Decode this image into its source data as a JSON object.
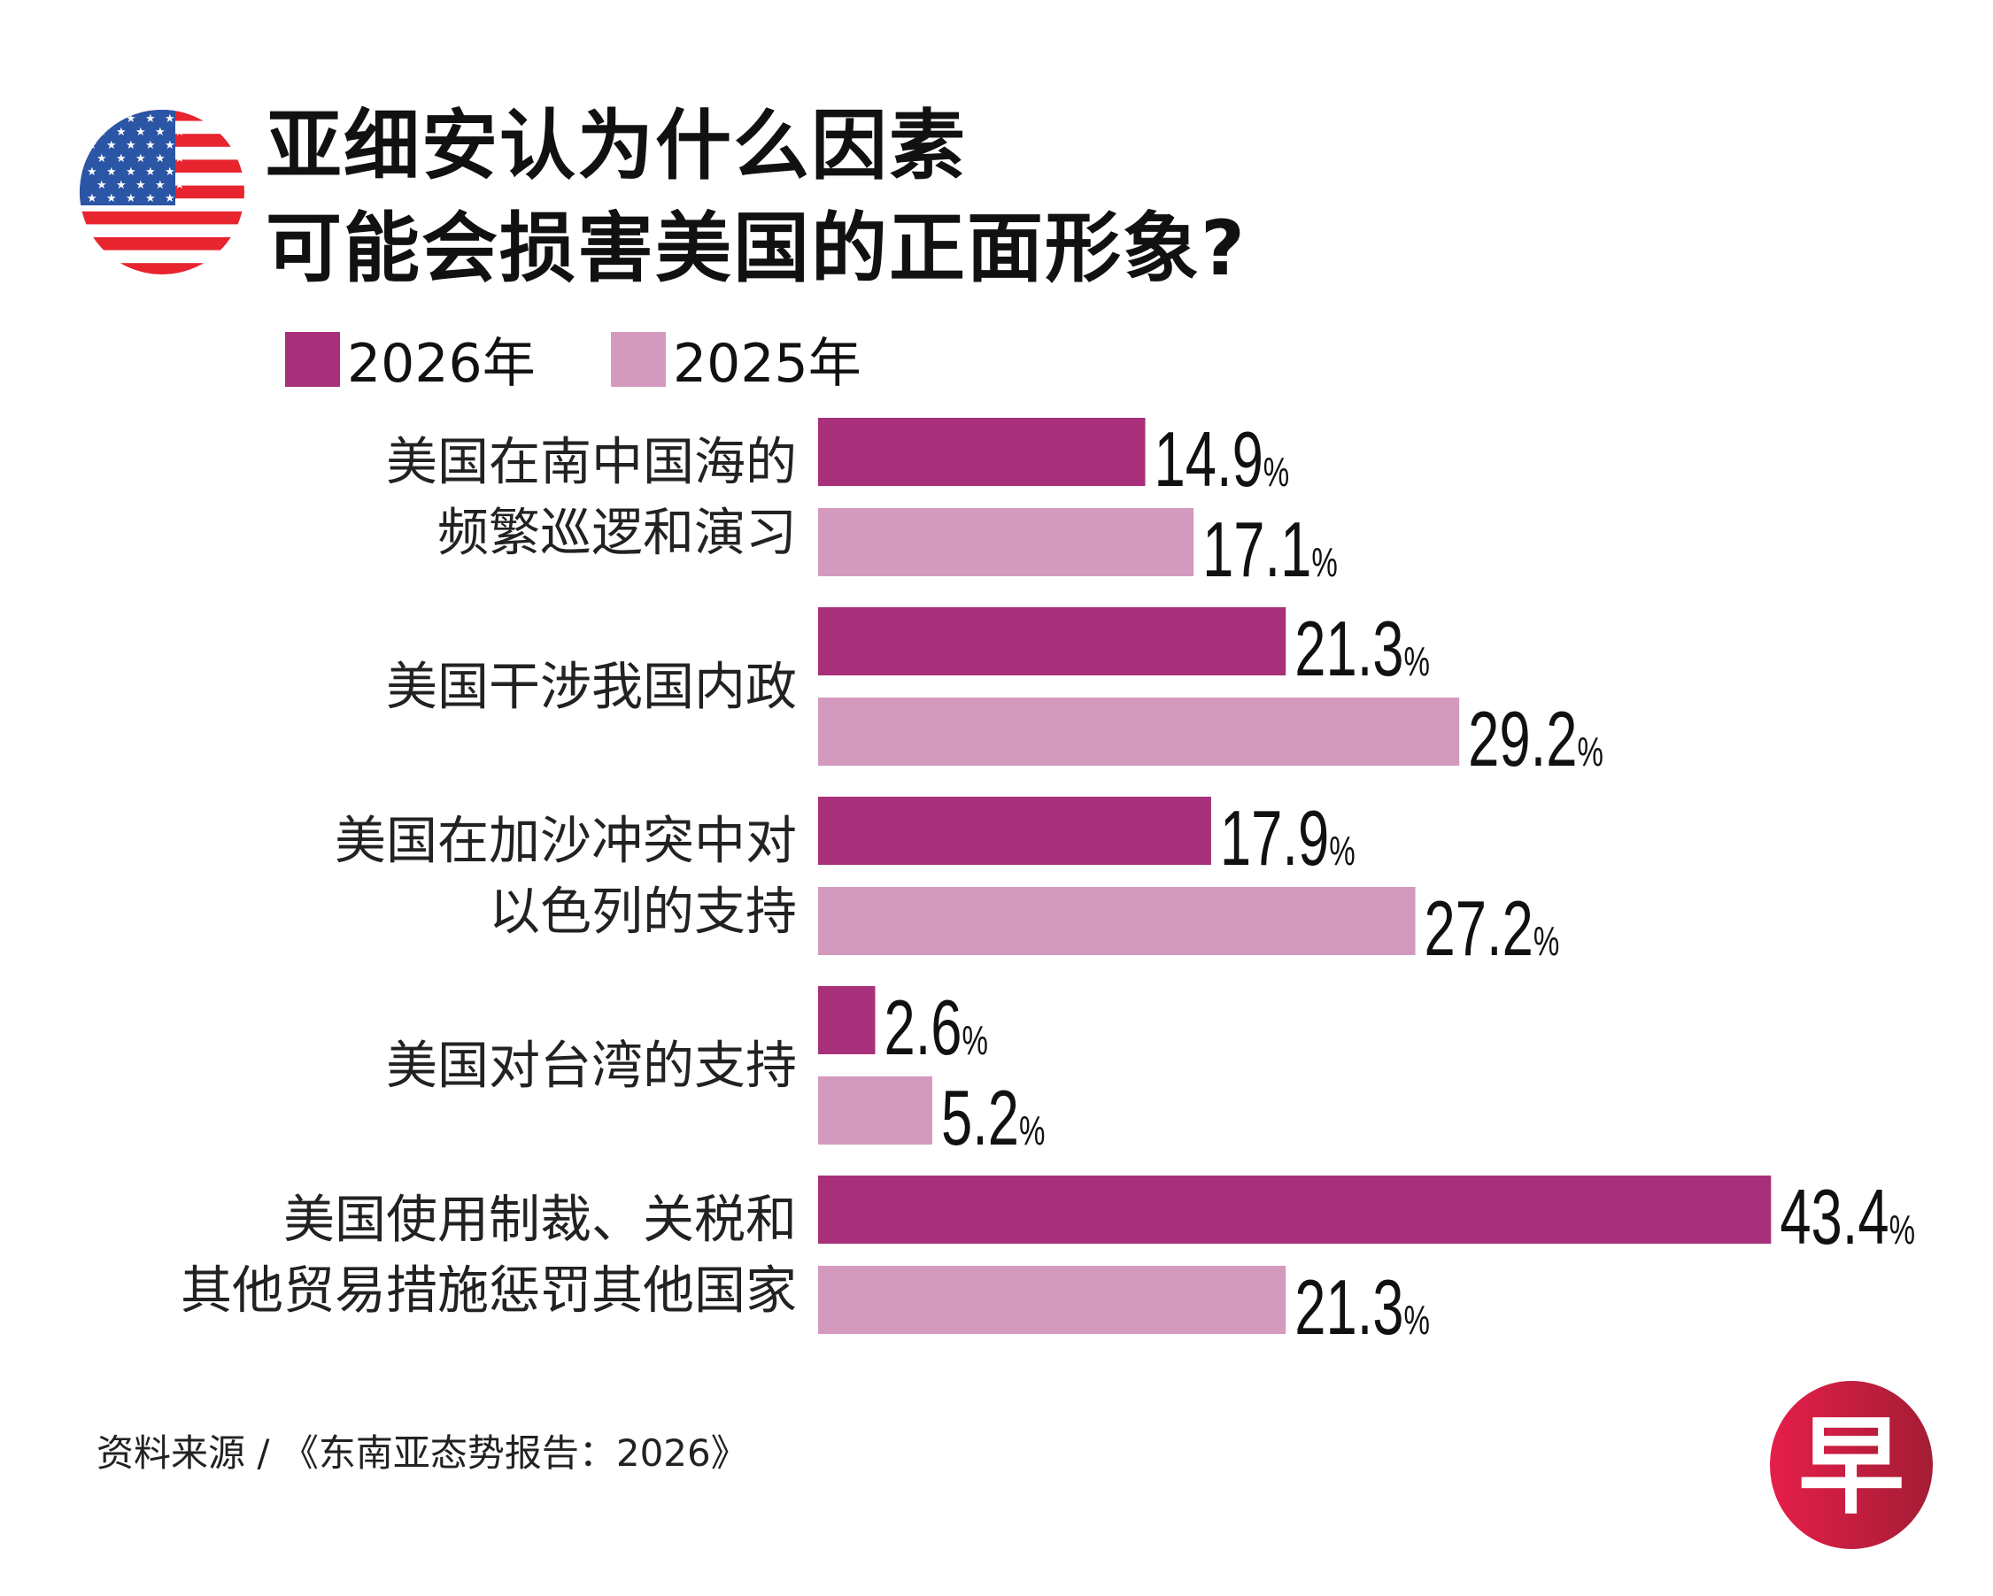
{
  "title": {
    "line1": "亚细安认为什么因素",
    "line2": "可能会损害美国的正面形象?"
  },
  "logo_text": "早",
  "source": "资料来源 / 《东南亚态势报告：2026》",
  "colors": {
    "2026": "#a8307a",
    "2025": "#d49abd",
    "flag_red": "#e8242f",
    "flag_blue": "#2b55a5",
    "logo_red": "#c8203f"
  },
  "chart_data": {
    "type": "bar",
    "orientation": "horizontal",
    "categories": [
      [
        "美国在南中国海的",
        "频繁巡逻和演习"
      ],
      [
        "美国干涉我国内政"
      ],
      [
        "美国在加沙冲突中对",
        "以色列的支持"
      ],
      [
        "美国对台湾的支持"
      ],
      [
        "美国使用制裁、关税和",
        "其他贸易措施惩罚其他国家"
      ]
    ],
    "series": [
      {
        "name": "2026年",
        "values": [
          14.9,
          21.3,
          17.9,
          2.6,
          43.4
        ]
      },
      {
        "name": "2025年",
        "values": [
          17.1,
          29.2,
          27.2,
          5.2,
          21.3
        ]
      }
    ],
    "unit": "%",
    "legend": "top-left",
    "grid": false,
    "xlim": [
      0,
      45
    ]
  }
}
